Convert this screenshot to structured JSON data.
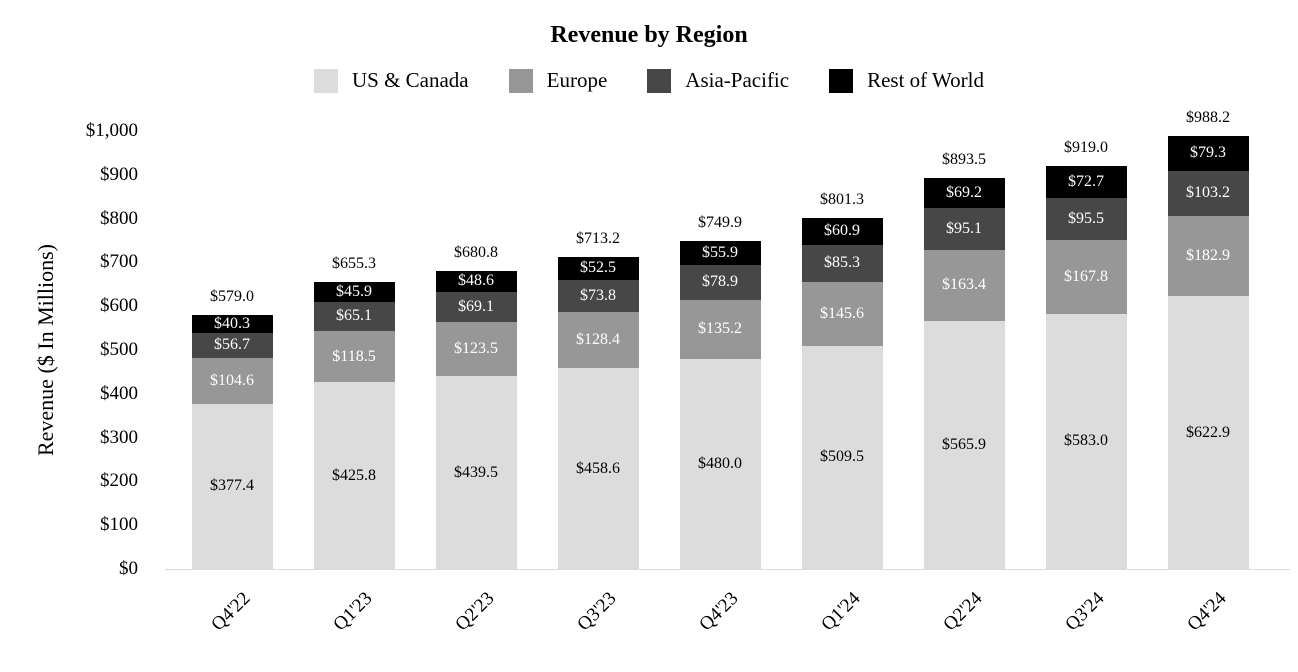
{
  "title": "Revenue by Region",
  "chart_data": {
    "type": "bar",
    "stacked": true,
    "title": "Revenue by Region",
    "xlabel": "",
    "ylabel": "Revenue ($ In Millions)",
    "ylim": [
      0,
      1000
    ],
    "y_ticks": [
      "$0",
      "$100",
      "$200",
      "$300",
      "$400",
      "$500",
      "$600",
      "$700",
      "$800",
      "$900",
      "$1,000"
    ],
    "grid": false,
    "legend_position": "top",
    "categories": [
      "Q4'22",
      "Q1'23",
      "Q2'23",
      "Q3'23",
      "Q4'23",
      "Q1'24",
      "Q2'24",
      "Q3'24",
      "Q4'24"
    ],
    "series": [
      {
        "name": "US & Canada",
        "color": "#dcdcdc",
        "label_color": "#000000",
        "values": [
          377.4,
          425.8,
          439.5,
          458.6,
          480.0,
          509.5,
          565.9,
          583.0,
          622.9
        ]
      },
      {
        "name": "Europe",
        "color": "#979797",
        "label_color": "#ffffff",
        "values": [
          104.6,
          118.5,
          123.5,
          128.4,
          135.2,
          145.6,
          163.4,
          167.8,
          182.9
        ]
      },
      {
        "name": "Asia-Pacific",
        "color": "#474747",
        "label_color": "#ffffff",
        "values": [
          56.7,
          65.1,
          69.1,
          73.8,
          78.9,
          85.3,
          95.1,
          95.5,
          103.2
        ]
      },
      {
        "name": "Rest of World",
        "color": "#000000",
        "label_color": "#ffffff",
        "values": [
          40.3,
          45.9,
          48.6,
          52.5,
          55.9,
          60.9,
          69.2,
          72.7,
          79.3
        ]
      }
    ],
    "totals": [
      579.0,
      655.3,
      680.8,
      713.2,
      749.9,
      801.3,
      893.5,
      919.0,
      988.2
    ],
    "value_prefix": "$",
    "value_decimals": 1
  }
}
